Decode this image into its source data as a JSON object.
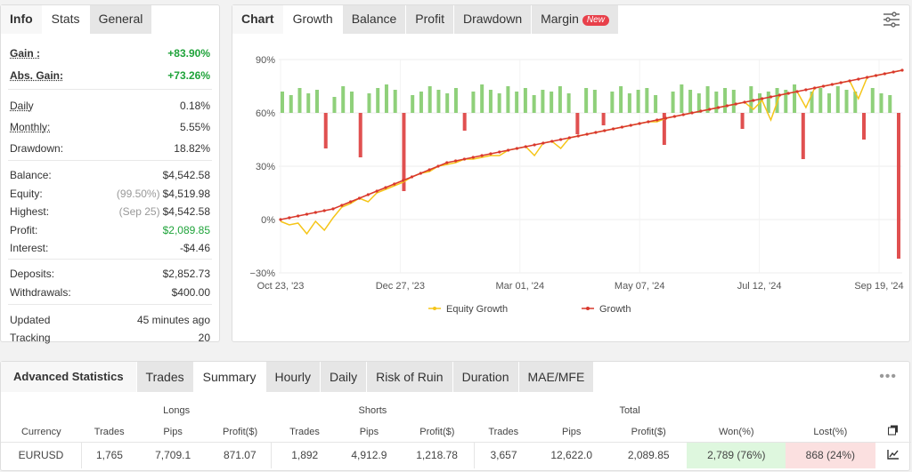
{
  "left_panel": {
    "tabs": [
      "Info",
      "Stats",
      "General"
    ],
    "stats": [
      {
        "label": "Gain :",
        "value": "+83.90%",
        "style": "green bold",
        "underline": true
      },
      {
        "label": "Abs. Gain:",
        "value": "+73.26%",
        "style": "green bold",
        "underline": true
      },
      {
        "label": "Daily",
        "value": "0.18%",
        "underline": true
      },
      {
        "label": "Monthly:",
        "value": "5.55%",
        "underline": true
      },
      {
        "label": "Drawdown:",
        "value": "18.82%"
      },
      {
        "label": "Balance:",
        "value": "$4,542.58"
      },
      {
        "label": "Equity:",
        "note": "(99.50%)",
        "value": "$4,519.98"
      },
      {
        "label": "Highest:",
        "note": "(Sep 25)",
        "value": "$4,542.58"
      },
      {
        "label": "Profit:",
        "value": "$2,089.85",
        "style": "green"
      },
      {
        "label": "Interest:",
        "value": "-$4.46"
      },
      {
        "label": "Deposits:",
        "value": "$2,852.73"
      },
      {
        "label": "Withdrawals:",
        "value": "$400.00"
      },
      {
        "label": "Updated",
        "value": "45 minutes ago"
      },
      {
        "label": "Tracking",
        "value": "20"
      }
    ]
  },
  "chart_panel": {
    "tabs": [
      "Chart",
      "Growth",
      "Balance",
      "Profit",
      "Drawdown",
      "Margin"
    ],
    "new_badge": "New",
    "settings_icon": "sliders-icon"
  },
  "chart_data": {
    "type": "line",
    "y_ticks": [
      "90%",
      "60%",
      "30%",
      "0%",
      "−30%"
    ],
    "ylim": [
      -30,
      90
    ],
    "x_ticks": [
      "Oct 23, '23",
      "Dec 27, '23",
      "Mar 01, '24",
      "May 07, '24",
      "Jul 12, '24",
      "Sep 19, '24"
    ],
    "legend": [
      "Equity Growth",
      "Growth"
    ],
    "colors": {
      "equity": "#f5c518",
      "growth": "#d9382c",
      "bar_up": "#8fd07a",
      "bar_down": "#e05050"
    },
    "growth": [
      0,
      1,
      2,
      3,
      4,
      5,
      6,
      8,
      10,
      12,
      14,
      16,
      18,
      20,
      22,
      24,
      26,
      28,
      30,
      32,
      33,
      34,
      35,
      36,
      37,
      38,
      39,
      40,
      41,
      42,
      43,
      44,
      45,
      46,
      47,
      48,
      49,
      50,
      51,
      52,
      53,
      54,
      55,
      56,
      57,
      58,
      59,
      60,
      61,
      62,
      63,
      64,
      65,
      66,
      67,
      68,
      69,
      70,
      71,
      72,
      73,
      74,
      75,
      76,
      77,
      78,
      79,
      80,
      81,
      82,
      83,
      84
    ],
    "equity": [
      -1,
      -3,
      -2,
      -8,
      -1,
      -6,
      1,
      7,
      9,
      12,
      10,
      15,
      17,
      19,
      21,
      24,
      26,
      27,
      30,
      31,
      32,
      34,
      34,
      35,
      36,
      36,
      39,
      40,
      41,
      36,
      43,
      44,
      40,
      46,
      47,
      48,
      49,
      50,
      51,
      52,
      53,
      54,
      55,
      55,
      57,
      58,
      59,
      60,
      61,
      62,
      63,
      64,
      65,
      66,
      62,
      67,
      56,
      70,
      71,
      72,
      63,
      74,
      75,
      76,
      77,
      78,
      68,
      80,
      81,
      82,
      83,
      84
    ],
    "bars": [
      12,
      10,
      14,
      11,
      13,
      -20,
      9,
      15,
      12,
      -25,
      11,
      14,
      16,
      13,
      -44,
      10,
      12,
      15,
      13,
      11,
      14,
      -10,
      12,
      16,
      13,
      11,
      15,
      12,
      14,
      10,
      13,
      12,
      15,
      11,
      -12,
      14,
      13,
      -7,
      12,
      15,
      11,
      13,
      14,
      10,
      -18,
      12,
      16,
      13,
      11,
      15,
      12,
      14,
      13,
      -9,
      15,
      11,
      12,
      14,
      13,
      16,
      -26,
      12,
      14,
      11,
      15,
      13,
      12,
      -15,
      14,
      11,
      10,
      -82
    ]
  },
  "advanced": {
    "title": "Advanced Statistics",
    "tabs": [
      "Trades",
      "Summary",
      "Hourly",
      "Daily",
      "Risk of Ruin",
      "Duration",
      "MAE/MFE"
    ],
    "groups": {
      "longs": "Longs",
      "shorts": "Shorts",
      "total": "Total"
    },
    "columns": [
      "Currency",
      "Trades",
      "Pips",
      "Profit($)",
      "Trades",
      "Pips",
      "Profit($)",
      "Trades",
      "Pips",
      "Profit($)",
      "Won(%)",
      "Lost(%)"
    ],
    "row": [
      "EURUSD",
      "1,765",
      "7,709.1",
      "871.07",
      "1,892",
      "4,912.9",
      "1,218.78",
      "3,657",
      "12,622.0",
      "2,089.85",
      "2,789 (76%)",
      "868 (24%)"
    ]
  }
}
